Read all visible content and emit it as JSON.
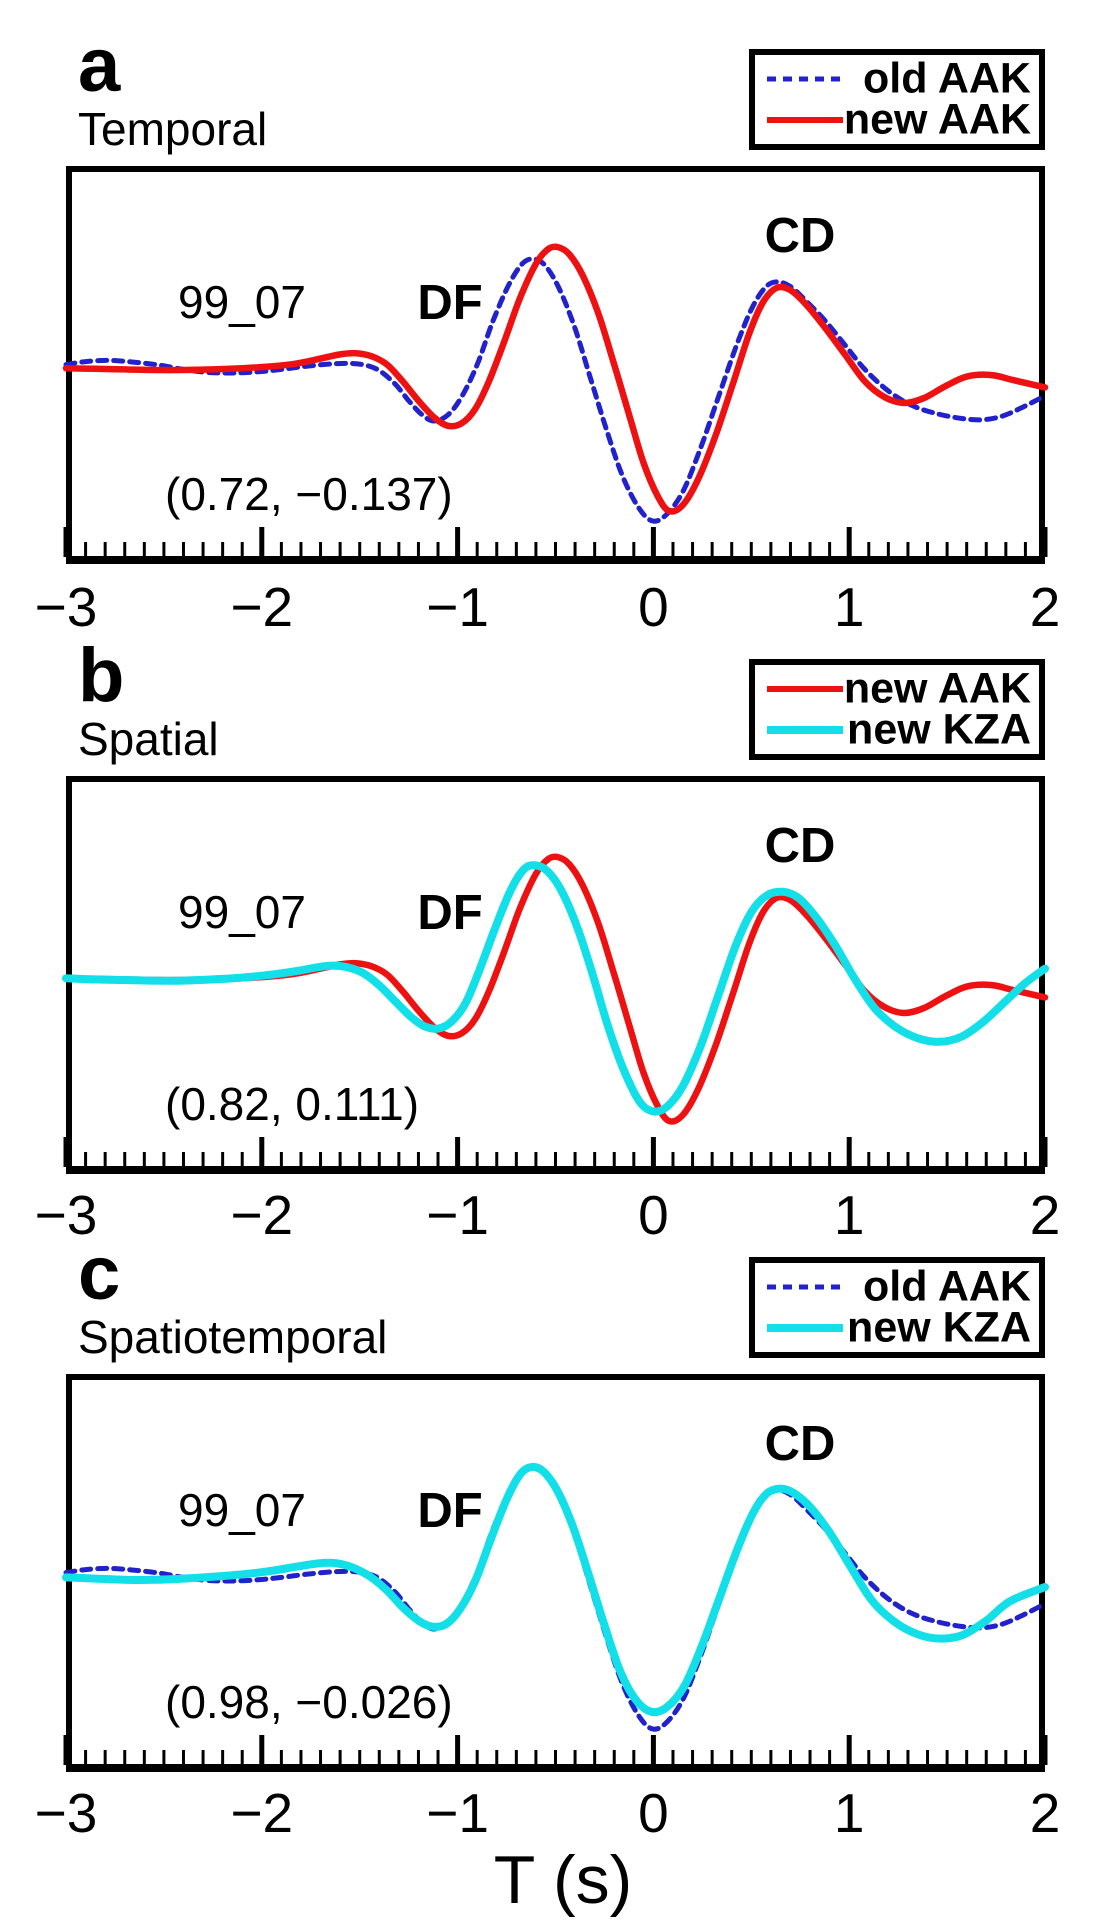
{
  "chart_data": {
    "type": "line",
    "xlabel": "T (s)",
    "x_range": [
      -3,
      2
    ],
    "x_ticks": [
      -3,
      -2,
      -1,
      0,
      1,
      2
    ],
    "x_tick_labels": [
      "−3",
      "−2",
      "−1",
      "0",
      "1",
      "2"
    ],
    "x_minor_step": 0.1,
    "grid": false,
    "legend_position": "top-right-outside",
    "amplitude_unit": "normalized (main peak of new AAK = 1.0)",
    "colors": {
      "old_aak": "#2222cc",
      "new_aak": "#ee1111",
      "new_kza": "#12dfe8",
      "axis": "#000000",
      "background": "#ffffff"
    },
    "waveforms": {
      "old_aak": [
        [
          -3,
          0.02
        ],
        [
          -2.9,
          0.045
        ],
        [
          -2.78,
          0.055
        ],
        [
          -2.65,
          0.04
        ],
        [
          -2.52,
          0.015
        ],
        [
          -2.4,
          -0.02
        ],
        [
          -2.28,
          -0.045
        ],
        [
          -2.15,
          -0.05
        ],
        [
          -2.02,
          -0.04
        ],
        [
          -1.9,
          -0.02
        ],
        [
          -1.78,
          0.005
        ],
        [
          -1.65,
          0.025
        ],
        [
          -1.55,
          0.03
        ],
        [
          -1.47,
          0.015
        ],
        [
          -1.4,
          -0.03
        ],
        [
          -1.32,
          -0.14
        ],
        [
          -1.25,
          -0.28
        ],
        [
          -1.18,
          -0.4
        ],
        [
          -1.12,
          -0.45
        ],
        [
          -1.05,
          -0.4
        ],
        [
          -0.98,
          -0.25
        ],
        [
          -0.9,
          0.02
        ],
        [
          -0.82,
          0.38
        ],
        [
          -0.74,
          0.68
        ],
        [
          -0.67,
          0.86
        ],
        [
          -0.61,
          0.9
        ],
        [
          -0.55,
          0.84
        ],
        [
          -0.48,
          0.65
        ],
        [
          -0.4,
          0.32
        ],
        [
          -0.32,
          -0.1
        ],
        [
          -0.24,
          -0.52
        ],
        [
          -0.16,
          -0.9
        ],
        [
          -0.08,
          -1.16
        ],
        [
          -0.01,
          -1.28
        ],
        [
          0.06,
          -1.24
        ],
        [
          0.15,
          -1.04
        ],
        [
          0.24,
          -0.68
        ],
        [
          0.33,
          -0.26
        ],
        [
          0.42,
          0.16
        ],
        [
          0.5,
          0.48
        ],
        [
          0.57,
          0.66
        ],
        [
          0.63,
          0.71
        ],
        [
          0.7,
          0.67
        ],
        [
          0.78,
          0.55
        ],
        [
          0.88,
          0.38
        ],
        [
          0.98,
          0.18
        ],
        [
          1.08,
          -0.02
        ],
        [
          1.2,
          -0.2
        ],
        [
          1.32,
          -0.32
        ],
        [
          1.45,
          -0.39
        ],
        [
          1.58,
          -0.43
        ],
        [
          1.68,
          -0.44
        ],
        [
          1.78,
          -0.41
        ],
        [
          1.88,
          -0.34
        ],
        [
          2,
          -0.24
        ]
      ],
      "new_aak": [
        [
          -3,
          -0.01
        ],
        [
          -2.85,
          -0.015
        ],
        [
          -2.7,
          -0.02
        ],
        [
          -2.55,
          -0.025
        ],
        [
          -2.4,
          -0.025
        ],
        [
          -2.25,
          -0.02
        ],
        [
          -2.1,
          -0.01
        ],
        [
          -1.95,
          0.005
        ],
        [
          -1.82,
          0.03
        ],
        [
          -1.7,
          0.07
        ],
        [
          -1.6,
          0.105
        ],
        [
          -1.52,
          0.115
        ],
        [
          -1.44,
          0.09
        ],
        [
          -1.36,
          0.02
        ],
        [
          -1.28,
          -0.12
        ],
        [
          -1.2,
          -0.28
        ],
        [
          -1.12,
          -0.42
        ],
        [
          -1.05,
          -0.49
        ],
        [
          -0.98,
          -0.47
        ],
        [
          -0.91,
          -0.35
        ],
        [
          -0.84,
          -0.12
        ],
        [
          -0.76,
          0.22
        ],
        [
          -0.68,
          0.58
        ],
        [
          -0.6,
          0.86
        ],
        [
          -0.54,
          0.98
        ],
        [
          -0.49,
          1.0
        ],
        [
          -0.43,
          0.94
        ],
        [
          -0.36,
          0.76
        ],
        [
          -0.28,
          0.44
        ],
        [
          -0.2,
          0.02
        ],
        [
          -0.12,
          -0.42
        ],
        [
          -0.05,
          -0.8
        ],
        [
          0.02,
          -1.07
        ],
        [
          0.08,
          -1.2
        ],
        [
          0.15,
          -1.15
        ],
        [
          0.23,
          -0.93
        ],
        [
          0.32,
          -0.56
        ],
        [
          0.41,
          -0.12
        ],
        [
          0.49,
          0.28
        ],
        [
          0.56,
          0.54
        ],
        [
          0.63,
          0.66
        ],
        [
          0.7,
          0.64
        ],
        [
          0.78,
          0.52
        ],
        [
          0.88,
          0.32
        ],
        [
          0.98,
          0.1
        ],
        [
          1.08,
          -0.12
        ],
        [
          1.18,
          -0.25
        ],
        [
          1.28,
          -0.3
        ],
        [
          1.38,
          -0.26
        ],
        [
          1.48,
          -0.17
        ],
        [
          1.58,
          -0.09
        ],
        [
          1.66,
          -0.065
        ],
        [
          1.74,
          -0.07
        ],
        [
          1.84,
          -0.11
        ],
        [
          2,
          -0.17
        ]
      ],
      "new_kza_spatial": [
        [
          -3,
          -0.01
        ],
        [
          -2.85,
          -0.02
        ],
        [
          -2.7,
          -0.025
        ],
        [
          -2.55,
          -0.03
        ],
        [
          -2.4,
          -0.03
        ],
        [
          -2.25,
          -0.02
        ],
        [
          -2.1,
          -0.005
        ],
        [
          -1.95,
          0.02
        ],
        [
          -1.82,
          0.05
        ],
        [
          -1.72,
          0.08
        ],
        [
          -1.64,
          0.095
        ],
        [
          -1.56,
          0.08
        ],
        [
          -1.48,
          0.03
        ],
        [
          -1.4,
          -0.07
        ],
        [
          -1.32,
          -0.2
        ],
        [
          -1.24,
          -0.33
        ],
        [
          -1.17,
          -0.41
        ],
        [
          -1.1,
          -0.43
        ],
        [
          -1.03,
          -0.37
        ],
        [
          -0.96,
          -0.22
        ],
        [
          -0.89,
          0.05
        ],
        [
          -0.81,
          0.4
        ],
        [
          -0.73,
          0.72
        ],
        [
          -0.66,
          0.9
        ],
        [
          -0.6,
          0.93
        ],
        [
          -0.54,
          0.88
        ],
        [
          -0.47,
          0.72
        ],
        [
          -0.39,
          0.42
        ],
        [
          -0.31,
          0.02
        ],
        [
          -0.23,
          -0.42
        ],
        [
          -0.15,
          -0.78
        ],
        [
          -0.07,
          -1.04
        ],
        [
          0,
          -1.12
        ],
        [
          0.07,
          -1.08
        ],
        [
          0.15,
          -0.91
        ],
        [
          0.24,
          -0.58
        ],
        [
          0.33,
          -0.16
        ],
        [
          0.42,
          0.26
        ],
        [
          0.5,
          0.54
        ],
        [
          0.58,
          0.68
        ],
        [
          0.66,
          0.71
        ],
        [
          0.74,
          0.66
        ],
        [
          0.83,
          0.5
        ],
        [
          0.93,
          0.26
        ],
        [
          1.03,
          -0.02
        ],
        [
          1.13,
          -0.26
        ],
        [
          1.24,
          -0.42
        ],
        [
          1.35,
          -0.51
        ],
        [
          1.46,
          -0.54
        ],
        [
          1.57,
          -0.5
        ],
        [
          1.68,
          -0.38
        ],
        [
          1.8,
          -0.2
        ],
        [
          1.9,
          -0.05
        ],
        [
          2,
          0.07
        ]
      ],
      "new_kza_spatiotemporal": [
        [
          -3,
          -0.02
        ],
        [
          -2.85,
          -0.03
        ],
        [
          -2.7,
          -0.04
        ],
        [
          -2.55,
          -0.04
        ],
        [
          -2.4,
          -0.03
        ],
        [
          -2.25,
          -0.015
        ],
        [
          -2.1,
          0.005
        ],
        [
          -1.95,
          0.035
        ],
        [
          -1.82,
          0.07
        ],
        [
          -1.72,
          0.095
        ],
        [
          -1.63,
          0.1
        ],
        [
          -1.54,
          0.065
        ],
        [
          -1.45,
          -0.01
        ],
        [
          -1.36,
          -0.13
        ],
        [
          -1.28,
          -0.27
        ],
        [
          -1.2,
          -0.38
        ],
        [
          -1.13,
          -0.43
        ],
        [
          -1.06,
          -0.41
        ],
        [
          -0.99,
          -0.29
        ],
        [
          -0.91,
          -0.05
        ],
        [
          -0.83,
          0.3
        ],
        [
          -0.75,
          0.63
        ],
        [
          -0.68,
          0.84
        ],
        [
          -0.62,
          0.9
        ],
        [
          -0.56,
          0.86
        ],
        [
          -0.49,
          0.7
        ],
        [
          -0.41,
          0.4
        ],
        [
          -0.33,
          0.0
        ],
        [
          -0.25,
          -0.42
        ],
        [
          -0.17,
          -0.8
        ],
        [
          -0.09,
          -1.04
        ],
        [
          -0.01,
          -1.14
        ],
        [
          0.07,
          -1.1
        ],
        [
          0.16,
          -0.92
        ],
        [
          0.25,
          -0.58
        ],
        [
          0.34,
          -0.18
        ],
        [
          0.43,
          0.22
        ],
        [
          0.51,
          0.52
        ],
        [
          0.58,
          0.68
        ],
        [
          0.65,
          0.72
        ],
        [
          0.72,
          0.68
        ],
        [
          0.81,
          0.55
        ],
        [
          0.91,
          0.33
        ],
        [
          1.01,
          0.06
        ],
        [
          1.12,
          -0.22
        ],
        [
          1.24,
          -0.4
        ],
        [
          1.36,
          -0.5
        ],
        [
          1.47,
          -0.53
        ],
        [
          1.58,
          -0.5
        ],
        [
          1.7,
          -0.38
        ],
        [
          1.82,
          -0.22
        ],
        [
          2,
          -0.1
        ]
      ]
    },
    "panels": [
      {
        "id": "a",
        "title": "Temporal",
        "series": [
          {
            "name": "old AAK",
            "waveform": "old_aak",
            "color": "#2222cc",
            "line": "dashed",
            "width": 5
          },
          {
            "name": "new AAK",
            "waveform": "new_aak",
            "color": "#ee1111",
            "line": "solid",
            "width": 6.5
          }
        ],
        "annotations": {
          "station": "99_07",
          "phase_DF": "DF",
          "phase_CD": "CD",
          "values": "(0.72, −0.137)"
        }
      },
      {
        "id": "b",
        "title": "Spatial",
        "series": [
          {
            "name": "new AAK",
            "waveform": "new_aak",
            "color": "#ee1111",
            "line": "solid",
            "width": 6.5
          },
          {
            "name": "new KZA",
            "waveform": "new_kza_spatial",
            "color": "#12dfe8",
            "line": "solid",
            "width": 8
          }
        ],
        "annotations": {
          "station": "99_07",
          "phase_DF": "DF",
          "phase_CD": "CD",
          "values": "(0.82, 0.111)"
        }
      },
      {
        "id": "c",
        "title": "Spatiotemporal",
        "series": [
          {
            "name": "old AAK",
            "waveform": "old_aak",
            "color": "#2222cc",
            "line": "dashed",
            "width": 5
          },
          {
            "name": "new KZA",
            "waveform": "new_kza_spatiotemporal",
            "color": "#12dfe8",
            "line": "solid",
            "width": 8
          }
        ],
        "annotations": {
          "station": "99_07",
          "phase_DF": "DF",
          "phase_CD": "CD",
          "values": "(0.98, −0.026)"
        }
      }
    ]
  }
}
